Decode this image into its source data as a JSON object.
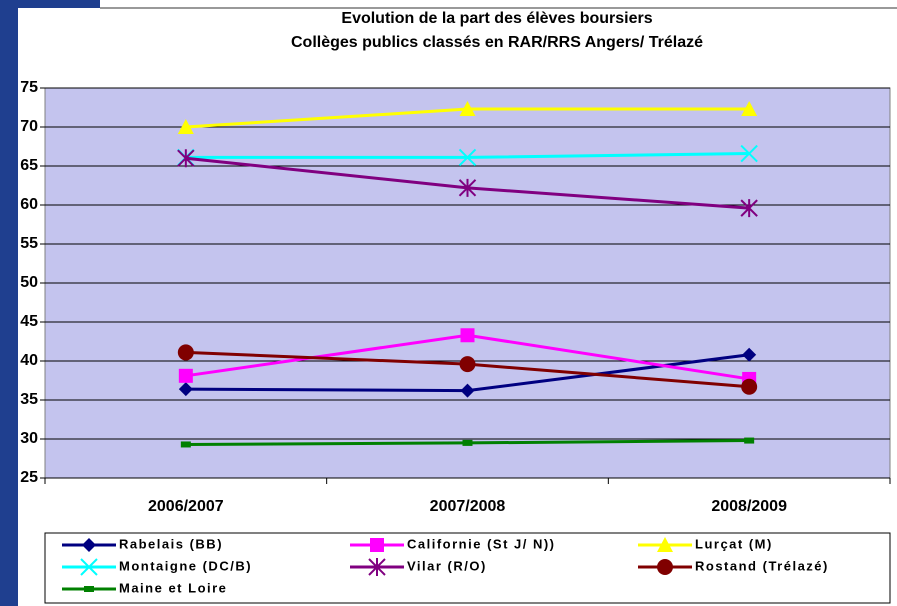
{
  "chart_data": {
    "type": "line",
    "title": [
      "Evolution de la part des élèves boursiers",
      "Collèges publics classés en RAR/RRS Angers/ Trélazé"
    ],
    "categories": [
      "2006/2007",
      "2007/2008",
      "2008/2009"
    ],
    "ylim": [
      25,
      75
    ],
    "yticks": [
      25,
      30,
      35,
      40,
      45,
      50,
      55,
      60,
      65,
      70,
      75
    ],
    "grid": true,
    "legend": "bottom",
    "series": [
      {
        "name": "Rabelais (BB)",
        "color": "#000080",
        "marker": "diamond",
        "values": [
          36.4,
          36.2,
          40.8
        ]
      },
      {
        "name": "Californie (St J/ N))",
        "color": "#ff00ff",
        "marker": "square",
        "values": [
          38.1,
          43.3,
          37.7
        ]
      },
      {
        "name": "Lurçat (M)",
        "color": "#ffff00",
        "marker": "triangle",
        "values": [
          70.0,
          72.3,
          72.3
        ]
      },
      {
        "name": "Montaigne (DC/B)",
        "color": "#00ffff",
        "marker": "x",
        "values": [
          66.1,
          66.1,
          66.6
        ]
      },
      {
        "name": "Vilar (R/O)",
        "color": "#800080",
        "marker": "asterisk",
        "values": [
          66.0,
          62.2,
          59.6
        ]
      },
      {
        "name": "Rostand (Trélazé)",
        "color": "#800000",
        "marker": "circle",
        "values": [
          41.1,
          39.6,
          36.7
        ]
      },
      {
        "name": "Maine et Loire",
        "color": "#008000",
        "marker": "dash",
        "values": [
          29.3,
          29.5,
          29.8
        ]
      }
    ]
  }
}
